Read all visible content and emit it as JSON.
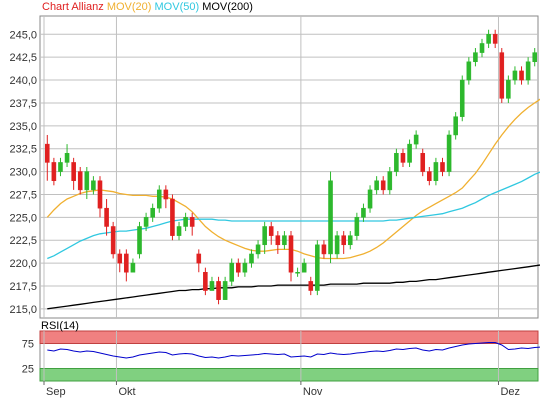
{
  "legend": {
    "title": "Chart Allianz",
    "mov20": "MOV(20)",
    "mov50": "MOV(50)",
    "mov200": "MOV(200)"
  },
  "colors": {
    "up": "#2db82d",
    "down": "#e02020",
    "mov20": "#f0b030",
    "mov50": "#30c8e0",
    "mov200": "#000000",
    "rsi": "#0000cc",
    "grid": "#c0c0c0",
    "rsiHigh": "#f08080",
    "rsiLow": "#80d080"
  },
  "rsi_label": "RSI(14)",
  "chart_data": [
    {
      "type": "candlestick",
      "title": "Chart Allianz",
      "ylim": [
        214,
        247
      ],
      "yticks": [
        "245,0",
        "242,5",
        "240,0",
        "237,5",
        "235,0",
        "232,5",
        "230,0",
        "227,5",
        "225,0",
        "222,5",
        "220,0",
        "217,5",
        "215,0"
      ],
      "ytick_values": [
        245,
        242.5,
        240,
        237.5,
        235,
        232.5,
        230,
        227.5,
        225,
        222.5,
        220,
        217.5,
        215
      ],
      "xticks": [
        {
          "label": "Sep",
          "index": 0
        },
        {
          "label": "Okt",
          "index": 11
        },
        {
          "label": "Nov",
          "index": 39
        },
        {
          "label": "Dez",
          "index": 69
        }
      ],
      "candles": [
        [
          233,
          231,
          234,
          229
        ],
        [
          231,
          229,
          231.5,
          228.5
        ],
        [
          230,
          231,
          231.5,
          229.5
        ],
        [
          231,
          232,
          233,
          230.5
        ],
        [
          231,
          229,
          231.5,
          228
        ],
        [
          230,
          228,
          230.5,
          227.5
        ],
        [
          228,
          230,
          230.5,
          227
        ],
        [
          228,
          229,
          229.5,
          227.5
        ],
        [
          229,
          226,
          229.5,
          225
        ],
        [
          226,
          224,
          227,
          223
        ],
        [
          224,
          221,
          224.5,
          220.5
        ],
        [
          221,
          220,
          221.5,
          219
        ],
        [
          221,
          219,
          221.5,
          218
        ],
        [
          219,
          220,
          220.5,
          219
        ],
        [
          221,
          224,
          224.5,
          220.5
        ],
        [
          224,
          225,
          225.5,
          223.5
        ],
        [
          225,
          226,
          226.5,
          224.5
        ],
        [
          226,
          228,
          228.5,
          225.5
        ],
        [
          228,
          227,
          228.5,
          226
        ],
        [
          227,
          223,
          227.5,
          222.5
        ],
        [
          223,
          224,
          224.5,
          222.5
        ],
        [
          224,
          225,
          225.5,
          223.5
        ],
        [
          225,
          224,
          225.5,
          223
        ],
        [
          221,
          220,
          221.5,
          219
        ],
        [
          219,
          217,
          219.5,
          216.5
        ],
        [
          217,
          218,
          218.5,
          217
        ],
        [
          218,
          216,
          218.5,
          215.5
        ],
        [
          216,
          218,
          218.5,
          216
        ],
        [
          218,
          220,
          220.5,
          217.5
        ],
        [
          220,
          219,
          220.5,
          218.5
        ],
        [
          219,
          220,
          220.5,
          218.5
        ],
        [
          220,
          221,
          221.5,
          219.5
        ],
        [
          221,
          222,
          222.5,
          220.5
        ],
        [
          222,
          224,
          224.5,
          221
        ],
        [
          224,
          223,
          224.5,
          222
        ],
        [
          223,
          222,
          223.5,
          221
        ],
        [
          222,
          223,
          223.5,
          221.5
        ],
        [
          223,
          219,
          223.5,
          218
        ],
        [
          219,
          219,
          219.5,
          218.5
        ],
        [
          219,
          220,
          220.5,
          219
        ],
        [
          218,
          217,
          218.5,
          216.5
        ],
        [
          217,
          222,
          222.5,
          216.5
        ],
        [
          222,
          221,
          222.5,
          220.5
        ],
        [
          221,
          229,
          230,
          220
        ],
        [
          221,
          223,
          223.5,
          220.5
        ],
        [
          223,
          222,
          223.5,
          221
        ],
        [
          222,
          223,
          223.5,
          221.5
        ],
        [
          223,
          225,
          225.5,
          222.5
        ],
        [
          225,
          226,
          226.5,
          224.5
        ],
        [
          226,
          228,
          228.5,
          225.5
        ],
        [
          228,
          229,
          229.5,
          227.5
        ],
        [
          229,
          228,
          229.5,
          227.5
        ],
        [
          228,
          230,
          230.5,
          227.5
        ],
        [
          230,
          232,
          232.5,
          229.5
        ],
        [
          232,
          231,
          232.5,
          230.5
        ],
        [
          231,
          233,
          233.5,
          230.5
        ],
        [
          233,
          234,
          234.5,
          232.5
        ],
        [
          232,
          230,
          232.5,
          229.5
        ],
        [
          230,
          229,
          230.5,
          228.5
        ],
        [
          229,
          231,
          231.5,
          228.5
        ],
        [
          231,
          230,
          231.5,
          229.5
        ],
        [
          230,
          234,
          234.5,
          229.5
        ],
        [
          234,
          236,
          236.5,
          233.5
        ],
        [
          236,
          240,
          240.5,
          235.5
        ],
        [
          240,
          242,
          242.5,
          239.5
        ],
        [
          242,
          243,
          243.5,
          241.5
        ],
        [
          243,
          244,
          244.5,
          242.5
        ],
        [
          244,
          245,
          245.5,
          243.5
        ],
        [
          245,
          244,
          245.5,
          243.5
        ],
        [
          243,
          238,
          243.5,
          237.5
        ],
        [
          238,
          240,
          240.5,
          237.5
        ],
        [
          240,
          241,
          241.5,
          239.5
        ],
        [
          241,
          240,
          241.5,
          239.5
        ],
        [
          240,
          242,
          242.5,
          239.5
        ],
        [
          242,
          243,
          243.5,
          241.5
        ]
      ],
      "series": [
        {
          "key": "mov20",
          "values": [
            225,
            225.8,
            226.5,
            227,
            227.3,
            227.6,
            227.8,
            227.9,
            228,
            227.9,
            227.8,
            227.6,
            227.5,
            227.4,
            227.4,
            227.4,
            227.3,
            227.3,
            227.2,
            227,
            226.6,
            226.2,
            225.6,
            224.8,
            224,
            223.4,
            222.9,
            222.5,
            222.2,
            221.9,
            221.6,
            221.4,
            221.3,
            221.3,
            221.4,
            221.5,
            221.5,
            221.5,
            221.3,
            221,
            220.8,
            220.6,
            220.5,
            220.5,
            220.5,
            220.5,
            220.6,
            220.8,
            221,
            221.3,
            221.7,
            222.2,
            222.8,
            223.4,
            224,
            224.6,
            225.2,
            225.7,
            226.1,
            226.5,
            226.9,
            227.3,
            227.7,
            228.2,
            229,
            229.8,
            230.8,
            231.9,
            233,
            234,
            234.9,
            235.7,
            236.4,
            237,
            237.5,
            238
          ]
        },
        {
          "key": "mov50",
          "values": [
            220.5,
            220.8,
            221.2,
            221.6,
            222,
            222.4,
            222.7,
            223,
            223.2,
            223.3,
            223.4,
            223.5,
            223.5,
            223.6,
            223.7,
            223.8,
            224,
            224.2,
            224.4,
            224.6,
            224.7,
            224.8,
            224.8,
            224.8,
            224.8,
            224.8,
            224.7,
            224.7,
            224.6,
            224.6,
            224.6,
            224.6,
            224.6,
            224.6,
            224.6,
            224.6,
            224.6,
            224.6,
            224.6,
            224.6,
            224.6,
            224.6,
            224.6,
            224.6,
            224.6,
            224.6,
            224.6,
            224.6,
            224.6,
            224.6,
            224.6,
            224.6,
            224.7,
            224.7,
            224.8,
            224.9,
            225,
            225.1,
            225.2,
            225.3,
            225.4,
            225.6,
            225.8,
            226,
            226.3,
            226.6,
            227,
            227.4,
            227.7,
            228,
            228.3,
            228.6,
            228.9,
            229.3,
            229.7,
            230
          ]
        },
        {
          "key": "mov200",
          "values": [
            215,
            215.1,
            215.2,
            215.3,
            215.4,
            215.5,
            215.6,
            215.7,
            215.8,
            215.9,
            216,
            216.1,
            216.2,
            216.3,
            216.4,
            216.5,
            216.6,
            216.7,
            216.8,
            216.9,
            217,
            217,
            217.1,
            217.1,
            217.2,
            217.2,
            217.3,
            217.3,
            217.3,
            217.4,
            217.4,
            217.4,
            217.5,
            217.5,
            217.5,
            217.6,
            217.6,
            217.6,
            217.6,
            217.6,
            217.6,
            217.6,
            217.6,
            217.7,
            217.7,
            217.7,
            217.7,
            217.7,
            217.8,
            217.8,
            217.8,
            217.8,
            217.8,
            217.9,
            217.9,
            218,
            218,
            218.1,
            218.2,
            218.2,
            218.3,
            218.4,
            218.5,
            218.6,
            218.7,
            218.8,
            218.9,
            219,
            219.1,
            219.2,
            219.3,
            219.4,
            219.5,
            219.6,
            219.7,
            219.8
          ]
        }
      ]
    },
    {
      "type": "line",
      "title": "RSI(14)",
      "ylim": [
        0,
        100
      ],
      "yticks": [
        "75",
        "25"
      ],
      "ytick_values": [
        75,
        25
      ],
      "overbought": 75,
      "oversold": 25,
      "values": [
        62,
        60,
        64,
        63,
        60,
        58,
        60,
        59,
        56,
        53,
        50,
        48,
        46,
        48,
        52,
        54,
        56,
        58,
        57,
        52,
        54,
        55,
        54,
        50,
        47,
        48,
        46,
        48,
        51,
        50,
        51,
        52,
        53,
        55,
        54,
        53,
        54,
        48,
        49,
        50,
        48,
        54,
        53,
        56,
        54,
        53,
        54,
        56,
        57,
        59,
        60,
        59,
        61,
        64,
        63,
        65,
        66,
        62,
        60,
        63,
        62,
        66,
        69,
        72,
        74,
        75,
        76,
        77,
        77,
        72,
        63,
        64,
        66,
        65,
        67,
        68
      ]
    }
  ]
}
